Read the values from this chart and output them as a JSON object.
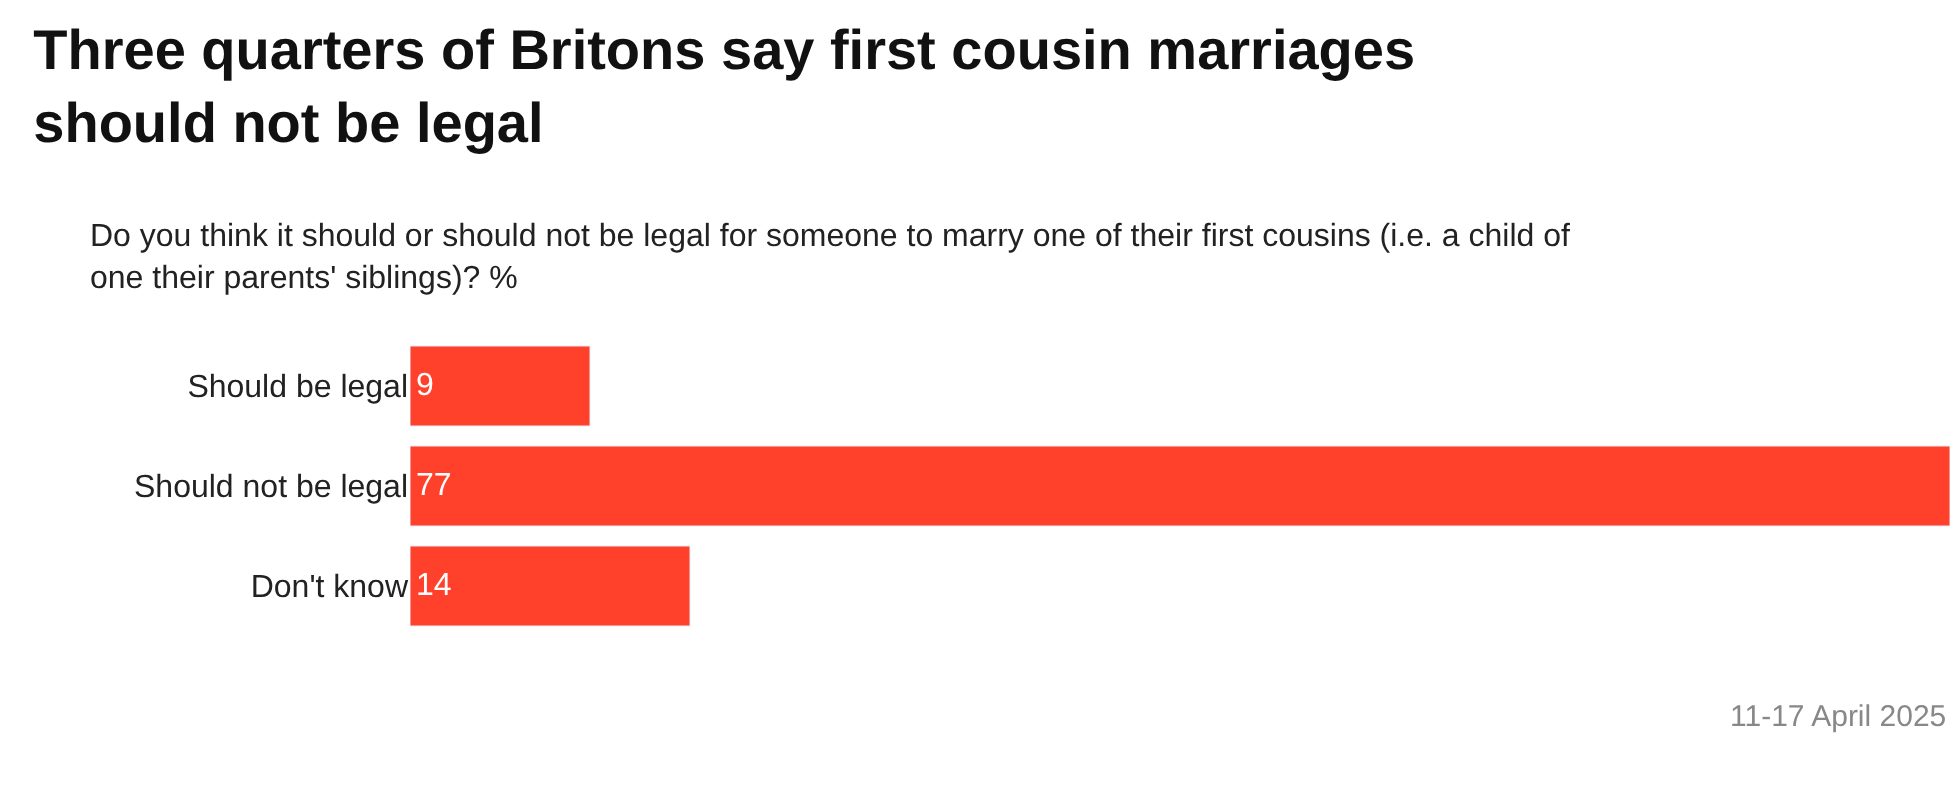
{
  "chart_data": {
    "type": "bar",
    "orientation": "horizontal",
    "title": "Three quarters of Britons say first cousin marriages should not be legal",
    "subtitle": "Do you think it should or should not be legal for someone to marry one of their first cousins (i.e. a child of one their parents' siblings)? %",
    "categories": [
      "Should be legal",
      "Should not be legal",
      "Don't know"
    ],
    "values": [
      9,
      77,
      14
    ],
    "color": "#ff412c",
    "data_labels": true,
    "annotations": [
      "11-17 April 2025"
    ]
  }
}
